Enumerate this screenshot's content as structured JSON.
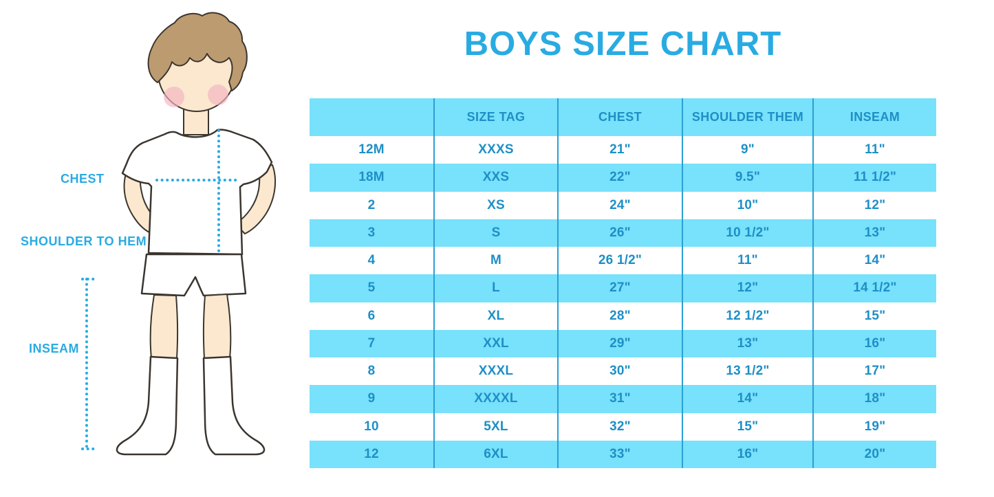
{
  "title": "BOYS SIZE CHART",
  "figure": {
    "chest_label": "CHEST",
    "shoulder_to_hem_label": "SHOULDER TO HEM",
    "inseam_label": "INSEAM"
  },
  "colors": {
    "accent_blue": "#29ABE2",
    "stripe_blue": "#78E1FB",
    "table_text_blue": "#1E8FC6",
    "divider_blue": "#2AA0D4",
    "hair_brown": "#BD9B70",
    "skin_tone": "#FBE8CE",
    "blush_pink": "#F2B3C3",
    "outline_dark": "#3B352F"
  },
  "chart_data": {
    "type": "table",
    "title": "BOYS SIZE CHART",
    "columns": [
      "",
      "SIZE TAG",
      "CHEST",
      "SHOULDER THEM",
      "INSEAM"
    ],
    "rows": [
      [
        "12M",
        "XXXS",
        "21\"",
        "9\"",
        "11\""
      ],
      [
        "18M",
        "XXS",
        "22\"",
        "9.5\"",
        "11 1/2\""
      ],
      [
        "2",
        "XS",
        "24\"",
        "10\"",
        "12\""
      ],
      [
        "3",
        "S",
        "26\"",
        "10 1/2\"",
        "13\""
      ],
      [
        "4",
        "M",
        "26 1/2\"",
        "11\"",
        "14\""
      ],
      [
        "5",
        "L",
        "27\"",
        "12\"",
        "14 1/2\""
      ],
      [
        "6",
        "XL",
        "28\"",
        "12 1/2\"",
        "15\""
      ],
      [
        "7",
        "XXL",
        "29\"",
        "13\"",
        "16\""
      ],
      [
        "8",
        "XXXL",
        "30\"",
        "13 1/2\"",
        "17\""
      ],
      [
        "9",
        "XXXXL",
        "31\"",
        "14\"",
        "18\""
      ],
      [
        "10",
        "5XL",
        "32\"",
        "15\"",
        "19\""
      ],
      [
        "12",
        "6XL",
        "33\"",
        "16\"",
        "20\""
      ]
    ],
    "layout_hints": {
      "striping": "header row and rows 18M/3/5/7/9/12 highlighted light blue, others white",
      "grid": "vertical column dividers only, no horizontal lines",
      "legend_position": "none"
    }
  }
}
